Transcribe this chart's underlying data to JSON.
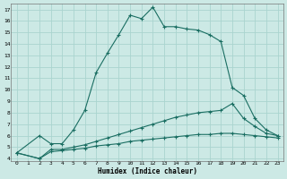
{
  "xlabel": "Humidex (Indice chaleur)",
  "background_color": "#cce9e5",
  "grid_color": "#aad4cf",
  "line_color": "#1a6e62",
  "xlim": [
    -0.5,
    23.5
  ],
  "ylim": [
    3.8,
    17.5
  ],
  "xticks": [
    0,
    1,
    2,
    3,
    4,
    5,
    6,
    7,
    8,
    9,
    10,
    11,
    12,
    13,
    14,
    15,
    16,
    17,
    18,
    19,
    20,
    21,
    22,
    23
  ],
  "yticks": [
    4,
    5,
    6,
    7,
    8,
    9,
    10,
    11,
    12,
    13,
    14,
    15,
    16,
    17
  ],
  "line1_x": [
    0,
    2,
    3,
    4,
    5,
    6,
    7,
    8,
    9,
    10,
    11,
    12,
    13,
    14,
    15,
    16,
    17,
    18,
    19,
    20,
    21,
    22,
    23
  ],
  "line1_y": [
    4.5,
    6.0,
    5.3,
    5.3,
    6.5,
    8.2,
    11.5,
    13.2,
    14.8,
    16.5,
    16.2,
    17.2,
    15.5,
    15.5,
    15.3,
    15.2,
    14.8,
    14.2,
    10.2,
    9.5,
    7.5,
    6.5,
    6.0
  ],
  "line2_x": [
    0,
    2,
    3,
    4,
    5,
    6,
    7,
    8,
    9,
    10,
    11,
    12,
    13,
    14,
    15,
    16,
    17,
    18,
    19,
    20,
    21,
    22,
    23
  ],
  "line2_y": [
    4.5,
    4.0,
    4.8,
    4.8,
    5.0,
    5.2,
    5.5,
    5.8,
    6.1,
    6.4,
    6.7,
    7.0,
    7.3,
    7.6,
    7.8,
    8.0,
    8.1,
    8.2,
    8.8,
    7.5,
    6.8,
    6.2,
    6.0
  ],
  "line3_x": [
    0,
    2,
    3,
    4,
    5,
    6,
    7,
    8,
    9,
    10,
    11,
    12,
    13,
    14,
    15,
    16,
    17,
    18,
    19,
    20,
    21,
    22,
    23
  ],
  "line3_y": [
    4.5,
    4.0,
    4.6,
    4.7,
    4.8,
    4.9,
    5.1,
    5.2,
    5.3,
    5.5,
    5.6,
    5.7,
    5.8,
    5.9,
    6.0,
    6.1,
    6.1,
    6.2,
    6.2,
    6.1,
    6.0,
    5.9,
    5.8
  ]
}
